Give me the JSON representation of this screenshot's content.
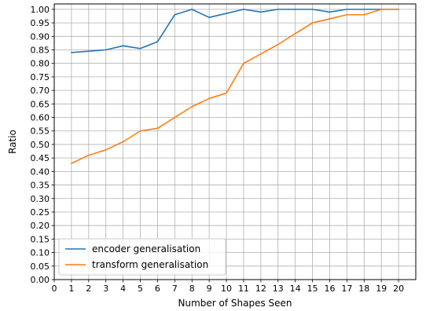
{
  "chart_data": {
    "type": "line",
    "xlabel": "Number of Shapes Seen",
    "ylabel": "Ratio",
    "xlim": [
      0,
      21
    ],
    "ylim": [
      0.0,
      1.02
    ],
    "xticks": [
      "0",
      "1",
      "2",
      "3",
      "4",
      "5",
      "6",
      "7",
      "8",
      "9",
      "10",
      "11",
      "12",
      "13",
      "14",
      "15",
      "16",
      "17",
      "18",
      "19",
      "20"
    ],
    "yticks": [
      "0.00",
      "0.05",
      "0.10",
      "0.15",
      "0.20",
      "0.25",
      "0.30",
      "0.35",
      "0.40",
      "0.45",
      "0.50",
      "0.55",
      "0.60",
      "0.65",
      "0.70",
      "0.75",
      "0.80",
      "0.85",
      "0.90",
      "0.95",
      "1.00"
    ],
    "grid": true,
    "legend_location": "bottom-left",
    "x": [
      1,
      2,
      3,
      4,
      5,
      6,
      7,
      8,
      9,
      10,
      11,
      12,
      13,
      14,
      15,
      16,
      17,
      18,
      19,
      20
    ],
    "series": [
      {
        "name": "encoder generalisation",
        "color": "#1f77b4",
        "values": [
          0.84,
          0.845,
          0.85,
          0.865,
          0.855,
          0.88,
          0.98,
          1.0,
          0.97,
          0.985,
          1.0,
          0.99,
          1.0,
          1.0,
          1.0,
          0.99,
          1.0,
          1.0,
          1.0,
          1.0
        ]
      },
      {
        "name": "transform generalisation",
        "color": "#ff7f0e",
        "values": [
          0.43,
          0.46,
          0.48,
          0.51,
          0.55,
          0.56,
          0.6,
          0.64,
          0.67,
          0.69,
          0.8,
          0.835,
          0.87,
          0.91,
          0.95,
          0.965,
          0.98,
          0.98,
          1.0,
          1.0
        ]
      }
    ]
  }
}
